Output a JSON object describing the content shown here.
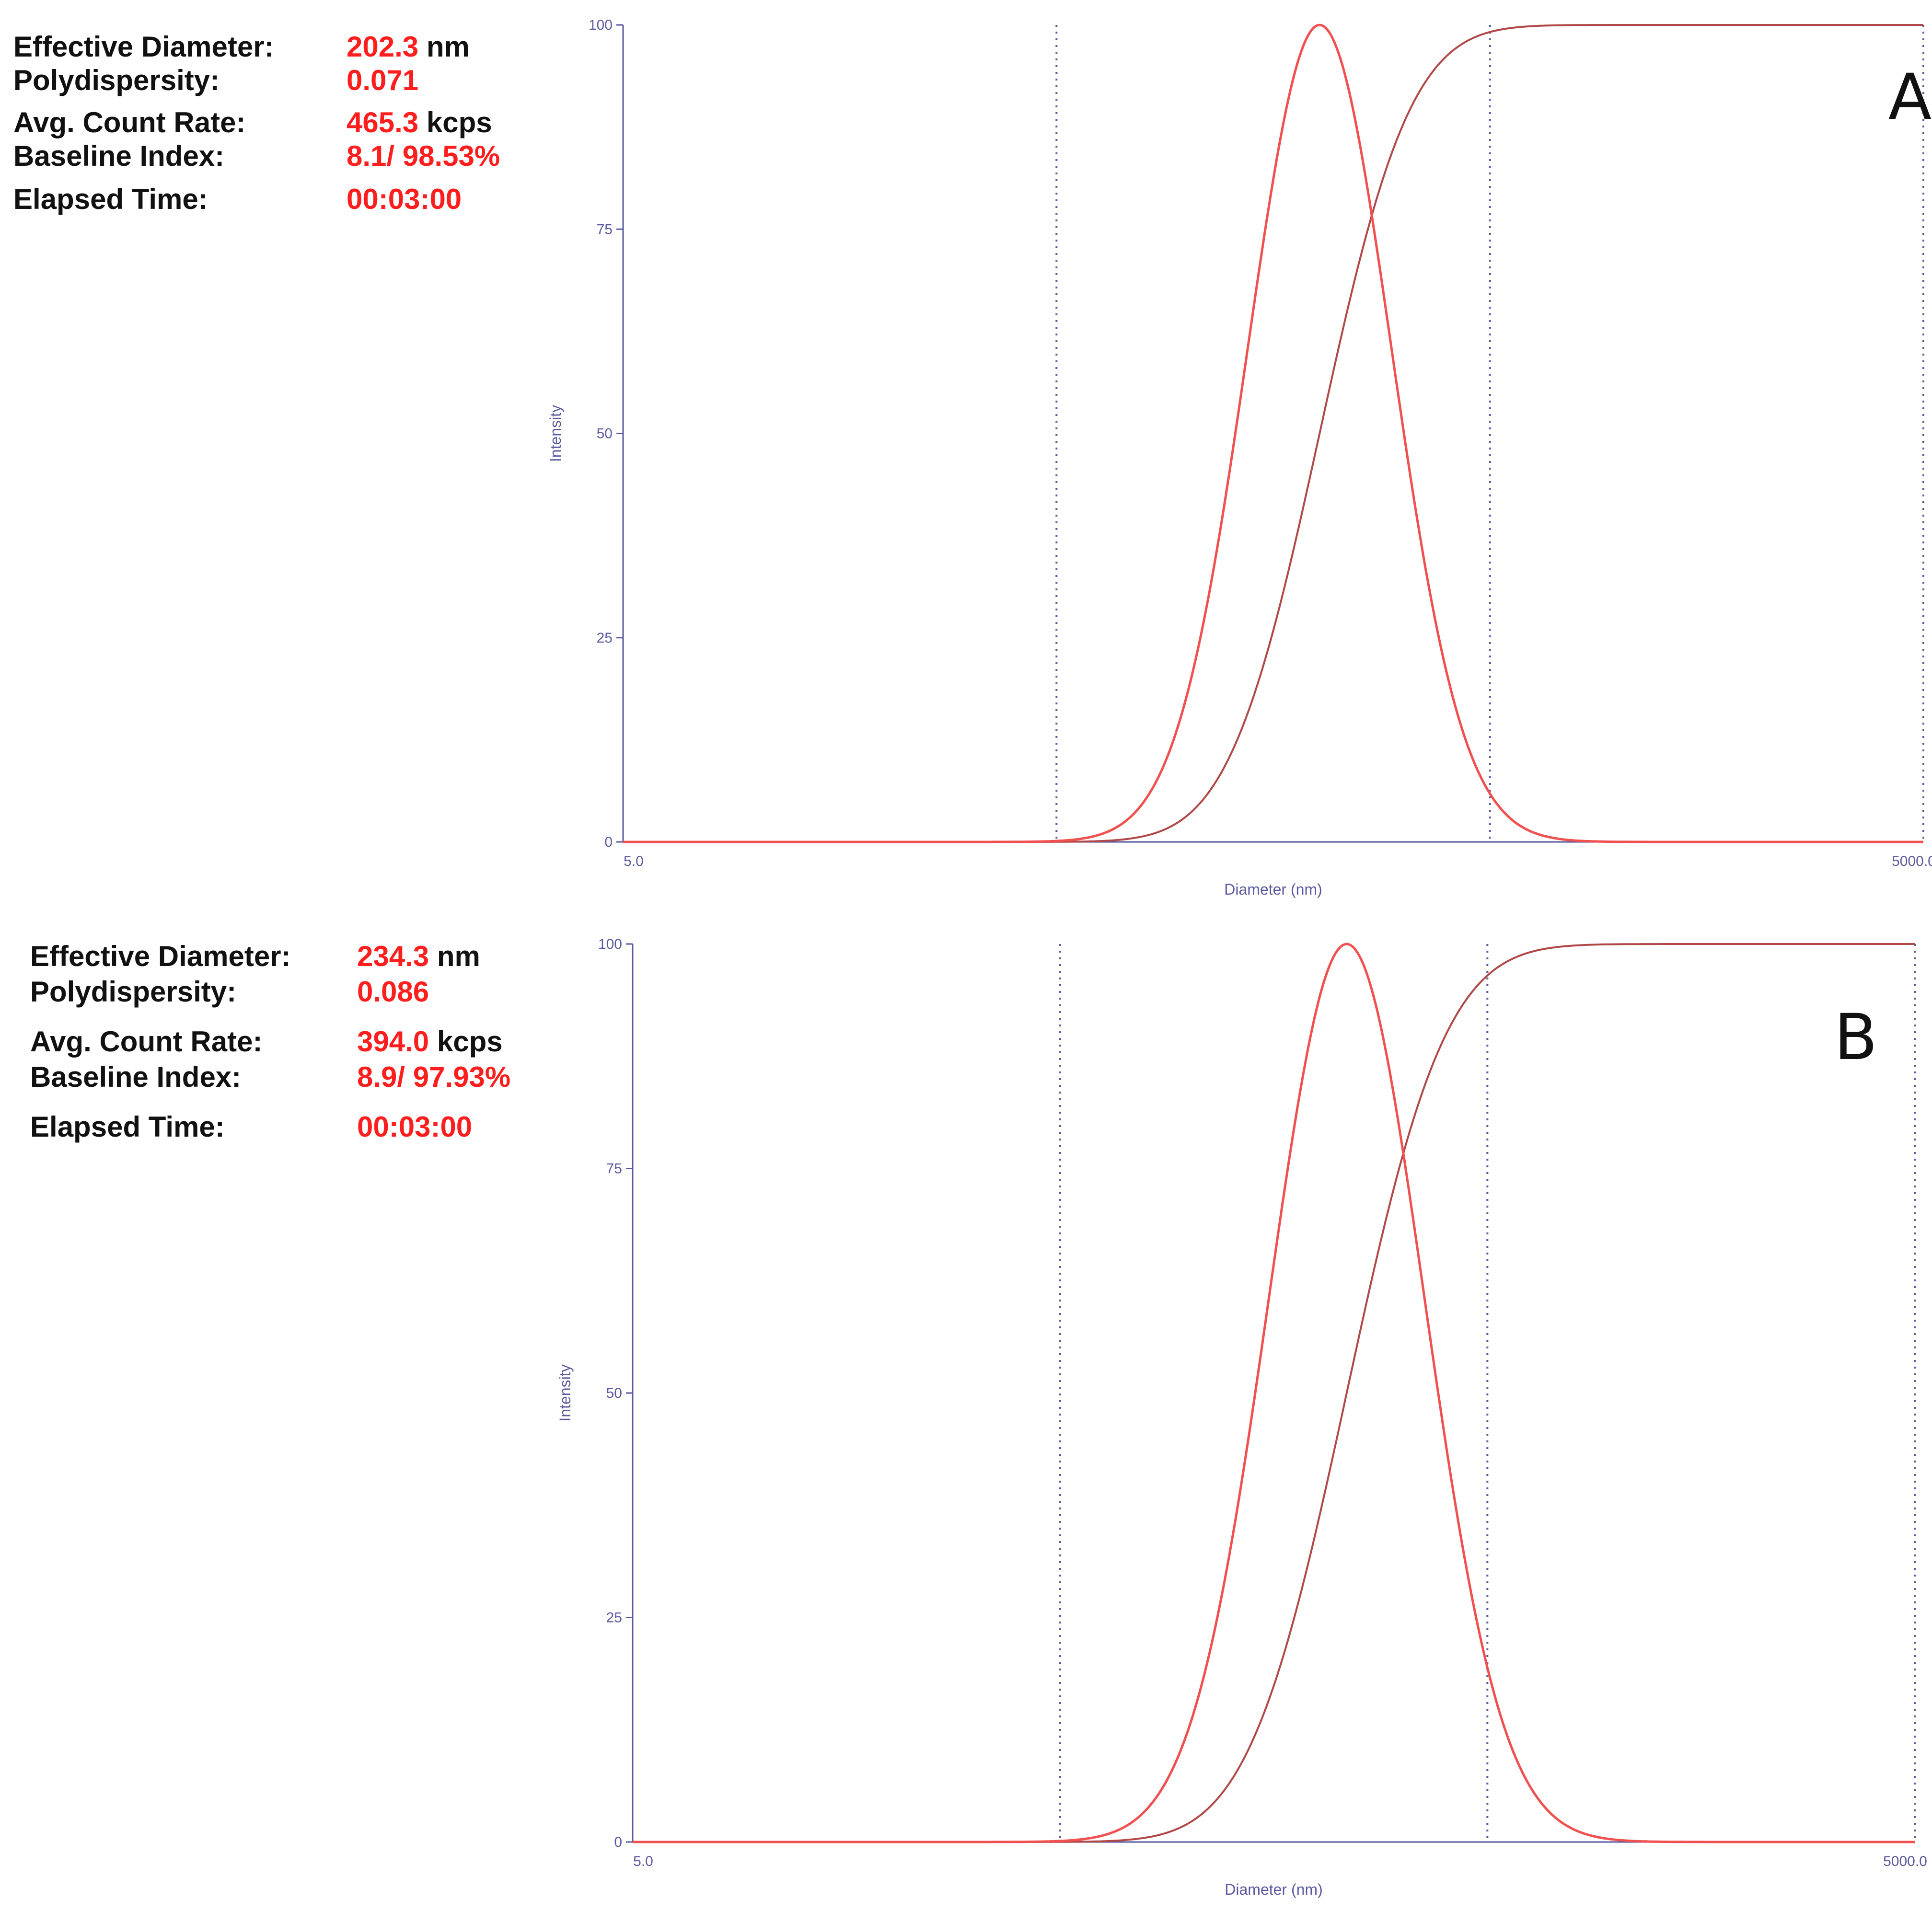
{
  "colors": {
    "axis": "#5a5aa0",
    "curve": "#f05050",
    "cumulative": "#b04848",
    "value": "#ff1e1e"
  },
  "panels": [
    {
      "letter": "A",
      "stats": {
        "effective_diameter_label": "Effective Diameter:",
        "effective_diameter_value": "202.3",
        "effective_diameter_unit": "nm",
        "polydispersity_label": "Polydispersity:",
        "polydispersity_value": "0.071",
        "count_rate_label": "Avg. Count Rate:",
        "count_rate_value": "465.3",
        "count_rate_unit": "kcps",
        "baseline_label": "Baseline Index:",
        "baseline_value": "8.1/ 98.53%",
        "elapsed_label": "Elapsed Time:",
        "elapsed_value": "00:03:00"
      }
    },
    {
      "letter": "B",
      "stats": {
        "effective_diameter_label": "Effective Diameter:",
        "effective_diameter_value": "234.3",
        "effective_diameter_unit": "nm",
        "polydispersity_label": "Polydispersity:",
        "polydispersity_value": "0.086",
        "count_rate_label": "Avg. Count Rate:",
        "count_rate_value": "394.0",
        "count_rate_unit": "kcps",
        "baseline_label": "Baseline Index:",
        "baseline_value": "8.9/ 97.93%",
        "elapsed_label": "Elapsed Time:",
        "elapsed_value": "00:03:00"
      }
    }
  ],
  "chart_data": [
    {
      "type": "line",
      "title": "",
      "xlabel": "Diameter (nm)",
      "ylabel": "Intensity",
      "xscale": "log",
      "xlim": [
        5.0,
        5000.0
      ],
      "ylim": [
        0,
        100
      ],
      "x_tick_labels": [
        "5.0",
        "5000.0"
      ],
      "y_ticks": [
        0,
        25,
        50,
        75,
        100
      ],
      "grid": "dotted vertical lines",
      "vlines": [
        50,
        500,
        5000
      ],
      "series": [
        {
          "style": "distribution",
          "mean_diameter": 202.3,
          "polydispersity": 0.071
        },
        {
          "style": "cumulative",
          "mean_diameter": 202.3,
          "polydispersity": 0.071
        }
      ]
    },
    {
      "type": "line",
      "title": "",
      "xlabel": "Diameter (nm)",
      "ylabel": "Intensity",
      "xscale": "log",
      "xlim": [
        5.0,
        5000.0
      ],
      "ylim": [
        0,
        100
      ],
      "x_tick_labels": [
        "5.0",
        "5000.0"
      ],
      "y_ticks": [
        0,
        25,
        50,
        75,
        100
      ],
      "grid": "dotted vertical lines",
      "vlines": [
        50,
        500,
        5000
      ],
      "series": [
        {
          "style": "distribution",
          "mean_diameter": 234.3,
          "polydispersity": 0.086
        },
        {
          "style": "cumulative",
          "mean_diameter": 234.3,
          "polydispersity": 0.086
        }
      ]
    }
  ]
}
